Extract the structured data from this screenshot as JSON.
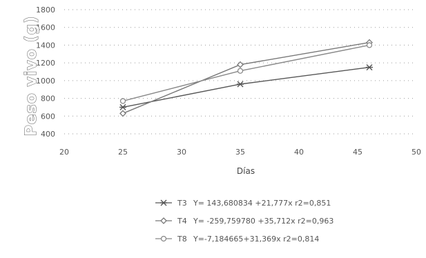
{
  "chart_data": {
    "type": "line",
    "title": "",
    "xlabel": "Días",
    "ylabel": "Peso vivo (g)",
    "xlim": [
      20,
      50
    ],
    "ylim": [
      400,
      1800
    ],
    "xticks": [
      "20",
      "25",
      "30",
      "35",
      "40",
      "45",
      "50"
    ],
    "yticks": [
      "400",
      "600",
      "800",
      "1000",
      "1200",
      "1400",
      "1600",
      "1800"
    ],
    "grid": "dotted",
    "legend_position": "bottom",
    "series": [
      {
        "name": "T3",
        "equation": "Y= 143,680834 +21,777x   r2=0,851",
        "marker": "cross",
        "color": "#555555",
        "points": [
          {
            "x": 25,
            "y": 700
          },
          {
            "x": 35,
            "y": 960
          },
          {
            "x": 46,
            "y": 1150
          }
        ]
      },
      {
        "name": "T4",
        "equation": "Y= -259,759780 +35,712x   r2=0,963",
        "marker": "diamond",
        "color": "#777777",
        "points": [
          {
            "x": 25,
            "y": 630
          },
          {
            "x": 35,
            "y": 1180
          },
          {
            "x": 46,
            "y": 1430
          }
        ]
      },
      {
        "name": "T8",
        "equation": "Y=-7,184665+31,369x   r2=0,814",
        "marker": "circle",
        "color": "#888888",
        "points": [
          {
            "x": 25,
            "y": 770
          },
          {
            "x": 35,
            "y": 1110
          },
          {
            "x": 46,
            "y": 1400
          }
        ]
      }
    ]
  }
}
